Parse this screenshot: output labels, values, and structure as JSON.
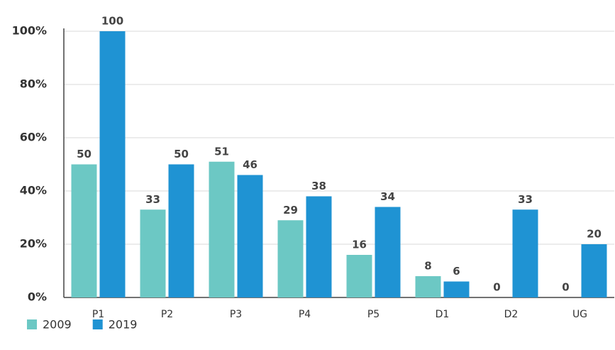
{
  "chart_data": {
    "type": "bar",
    "categories": [
      "P1",
      "P2",
      "P3",
      "P4",
      "P5",
      "D1",
      "D2",
      "UG"
    ],
    "series": [
      {
        "name": "2009",
        "color": "#6cc8c4",
        "values": [
          50,
          33,
          51,
          29,
          16,
          8,
          0,
          0
        ]
      },
      {
        "name": "2019",
        "color": "#1f93d3",
        "values": [
          100,
          50,
          46,
          38,
          34,
          6,
          33,
          20
        ]
      }
    ],
    "ylim": [
      0,
      100
    ],
    "yticks": [
      {
        "value": 0,
        "label": "0%"
      },
      {
        "value": 20,
        "label": "20%"
      },
      {
        "value": 40,
        "label": "40%"
      },
      {
        "value": 60,
        "label": "60%"
      },
      {
        "value": 80,
        "label": "80%"
      },
      {
        "value": 100,
        "label": "100%"
      }
    ],
    "grid": true,
    "legend": "bottom-left"
  }
}
